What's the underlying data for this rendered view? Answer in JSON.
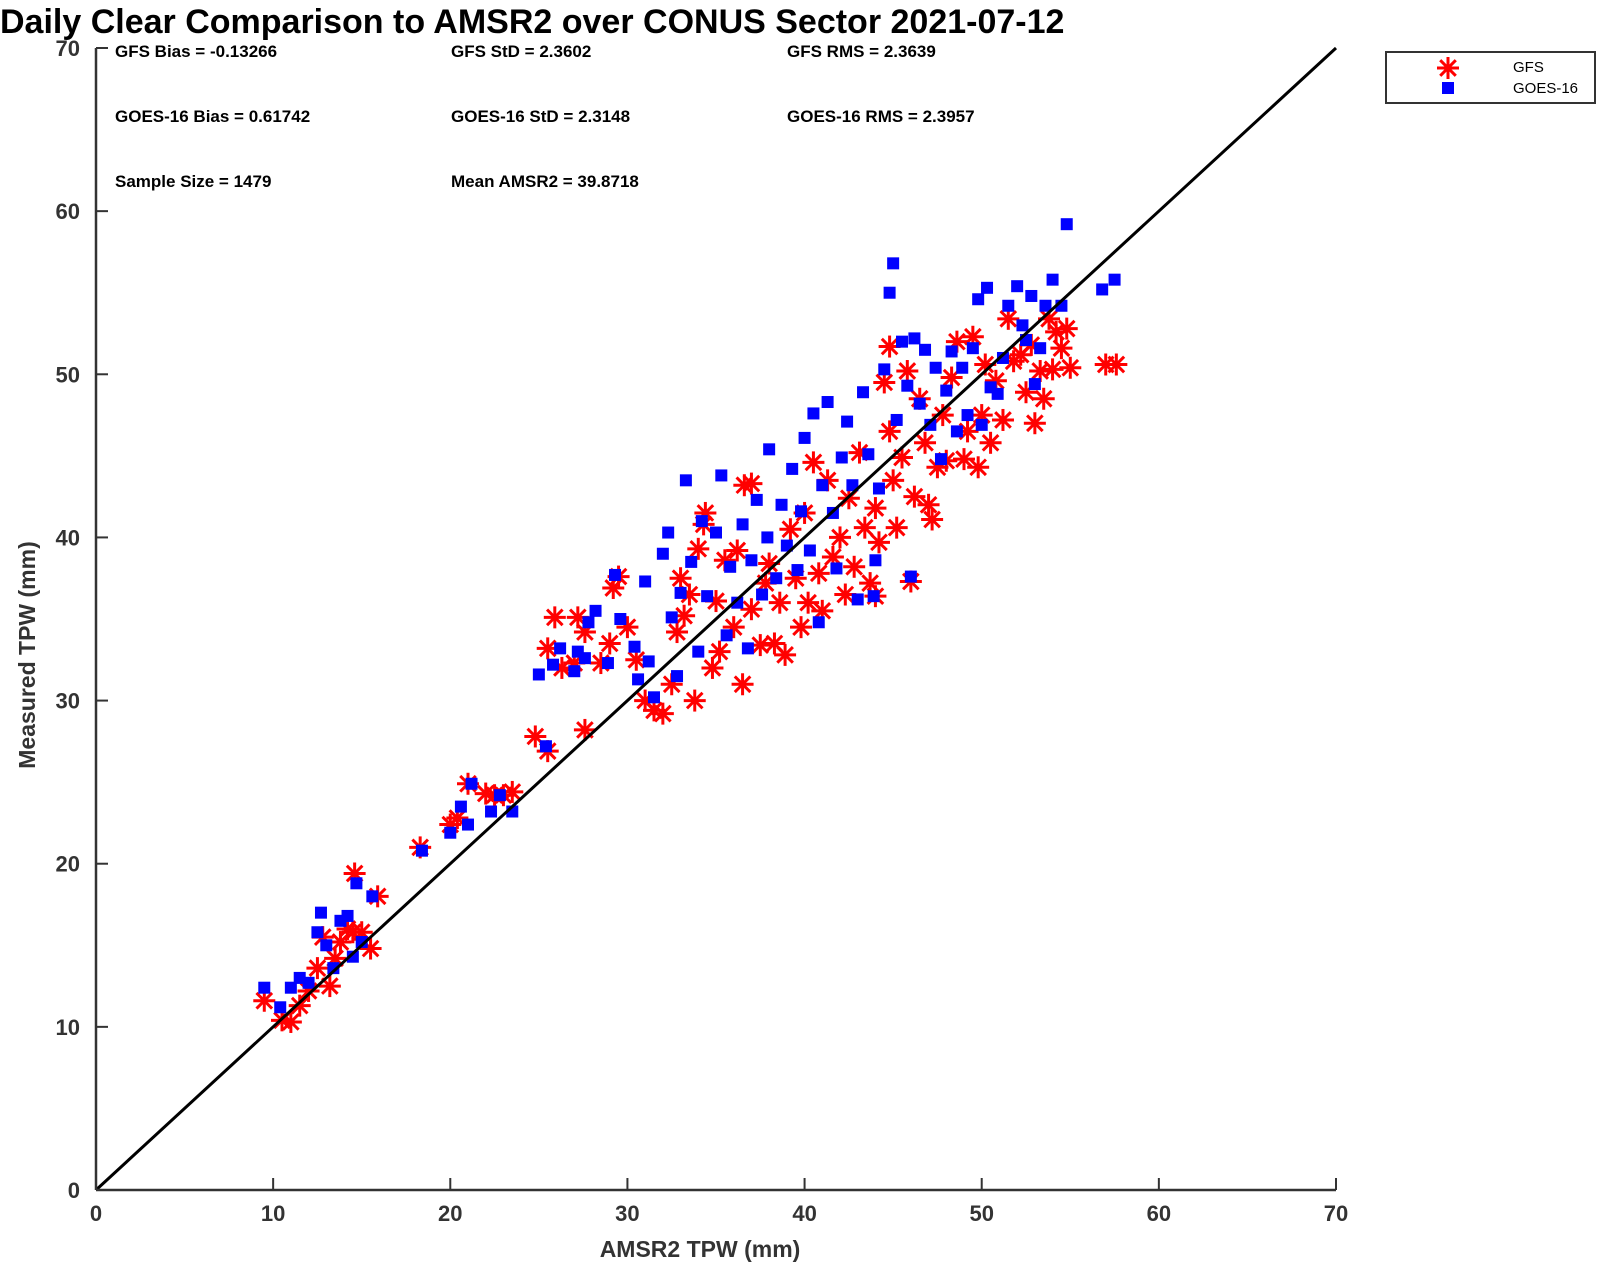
{
  "chart_data": {
    "type": "scatter",
    "title": "Daily Clear Comparison to AMSR2 over CONUS Sector 2021-07-12",
    "xlabel": "AMSR2 TPW (mm)",
    "ylabel": "Measured TPW (mm)",
    "xlim": [
      0,
      70
    ],
    "ylim": [
      0,
      70
    ],
    "xticks": [
      "0",
      "10",
      "20",
      "30",
      "40",
      "50",
      "60",
      "70"
    ],
    "yticks": [
      "0",
      "10",
      "20",
      "30",
      "40",
      "50",
      "60",
      "70"
    ],
    "grid": false,
    "legend_position": "outside-top-right",
    "reference_line": [
      [
        0,
        0
      ],
      [
        70,
        70
      ]
    ],
    "stats": [
      [
        "GFS Bias = -0.13266",
        "GFS StD = 2.3602",
        "GFS RMS = 2.3639"
      ],
      [
        "GOES-16 Bias = 0.61742",
        "GOES-16 StD = 2.3148",
        "GOES-16 RMS = 2.3957"
      ],
      [
        "Sample Size = 1479",
        "Mean AMSR2 = 39.8718",
        ""
      ]
    ],
    "series": [
      {
        "name": "GFS",
        "marker": "asterisk",
        "color": "#ff0000",
        "points": [
          [
            9.5,
            11.6
          ],
          [
            10.5,
            10.4
          ],
          [
            11,
            10.3
          ],
          [
            11.5,
            11.3
          ],
          [
            12,
            12.2
          ],
          [
            12.5,
            13.6
          ],
          [
            12.8,
            15.5
          ],
          [
            13.2,
            12.5
          ],
          [
            13.5,
            14.2
          ],
          [
            13.8,
            15.2
          ],
          [
            14.2,
            16
          ],
          [
            14.5,
            15.8
          ],
          [
            14.6,
            19.4
          ],
          [
            15,
            15.8
          ],
          [
            15.5,
            14.8
          ],
          [
            15.9,
            18
          ],
          [
            18.3,
            21
          ],
          [
            20,
            22.4
          ],
          [
            20.4,
            22.8
          ],
          [
            21,
            24.9
          ],
          [
            22,
            24.3
          ],
          [
            22.5,
            24.2
          ],
          [
            23,
            24.2
          ],
          [
            23.5,
            24.4
          ],
          [
            24.8,
            27.8
          ],
          [
            25.5,
            26.9
          ],
          [
            25.9,
            35.1
          ],
          [
            25.5,
            33.2
          ],
          [
            26.3,
            32
          ],
          [
            27,
            32.3
          ],
          [
            27.2,
            35.1
          ],
          [
            27.6,
            34.2
          ],
          [
            27.6,
            28.2
          ],
          [
            28.5,
            32.3
          ],
          [
            29,
            33.5
          ],
          [
            29.2,
            36.9
          ],
          [
            29.5,
            37.6
          ],
          [
            30,
            34.5
          ],
          [
            30.5,
            32.5
          ],
          [
            31,
            30
          ],
          [
            31.5,
            29.4
          ],
          [
            32,
            29.2
          ],
          [
            32.5,
            31
          ],
          [
            32.8,
            34.2
          ],
          [
            33,
            37.5
          ],
          [
            33.2,
            35.2
          ],
          [
            33.5,
            36.5
          ],
          [
            33.8,
            30
          ],
          [
            34,
            39.3
          ],
          [
            34.3,
            40.8
          ],
          [
            34.4,
            41.5
          ],
          [
            34.8,
            32
          ],
          [
            35,
            36.1
          ],
          [
            35.2,
            33
          ],
          [
            35.5,
            38.6
          ],
          [
            36,
            34.5
          ],
          [
            36.2,
            39.2
          ],
          [
            36.5,
            31
          ],
          [
            36.6,
            43.2
          ],
          [
            37,
            35.6
          ],
          [
            37,
            43.3
          ],
          [
            37.5,
            33.4
          ],
          [
            37.8,
            37.2
          ],
          [
            38,
            38.4
          ],
          [
            38.3,
            33.5
          ],
          [
            38.6,
            36
          ],
          [
            38.9,
            32.8
          ],
          [
            39.2,
            40.5
          ],
          [
            39.5,
            37.5
          ],
          [
            39.8,
            34.5
          ],
          [
            40,
            41.5
          ],
          [
            40.2,
            36
          ],
          [
            40.5,
            44.6
          ],
          [
            40.8,
            37.8
          ],
          [
            41,
            35.5
          ],
          [
            41.3,
            43.5
          ],
          [
            41.6,
            38.8
          ],
          [
            42,
            40
          ],
          [
            42.3,
            36.5
          ],
          [
            42.5,
            42.4
          ],
          [
            42.8,
            38.2
          ],
          [
            43.1,
            45.2
          ],
          [
            43.4,
            40.6
          ],
          [
            43.7,
            37.2
          ],
          [
            44,
            41.8
          ],
          [
            44,
            36.4
          ],
          [
            44.2,
            39.7
          ],
          [
            44.5,
            49.5
          ],
          [
            44.8,
            46.5
          ],
          [
            44.8,
            51.7
          ],
          [
            45,
            43.5
          ],
          [
            45.2,
            40.6
          ],
          [
            45.5,
            44.9
          ],
          [
            45.8,
            50.2
          ],
          [
            46,
            37.3
          ],
          [
            46.2,
            42.5
          ],
          [
            46.5,
            48.5
          ],
          [
            46.8,
            45.8
          ],
          [
            47,
            42
          ],
          [
            47.2,
            41.1
          ],
          [
            47.5,
            44.3
          ],
          [
            47.8,
            47.5
          ],
          [
            48,
            44.7
          ],
          [
            48.3,
            49.8
          ],
          [
            48.6,
            52
          ],
          [
            49,
            44.8
          ],
          [
            49.2,
            46.5
          ],
          [
            49.5,
            52.3
          ],
          [
            49.8,
            44.3
          ],
          [
            50,
            47.5
          ],
          [
            50.2,
            50.6
          ],
          [
            50.5,
            45.8
          ],
          [
            50.8,
            49.6
          ],
          [
            51.2,
            47.2
          ],
          [
            51.5,
            53.4
          ],
          [
            51.8,
            50.8
          ],
          [
            52.2,
            51.2
          ],
          [
            52.5,
            48.9
          ],
          [
            52.8,
            51.8
          ],
          [
            53,
            47
          ],
          [
            53.3,
            50.2
          ],
          [
            53.5,
            48.5
          ],
          [
            53.8,
            53.4
          ],
          [
            54,
            50.3
          ],
          [
            54.2,
            52.6
          ],
          [
            54.5,
            51.6
          ],
          [
            54.8,
            52.8
          ],
          [
            55,
            50.4
          ],
          [
            57,
            50.6
          ],
          [
            57.6,
            50.6
          ]
        ]
      },
      {
        "name": "GOES-16",
        "marker": "square",
        "color": "#0000ff",
        "points": [
          [
            9.5,
            12.4
          ],
          [
            10.4,
            11.2
          ],
          [
            11,
            12.4
          ],
          [
            11.5,
            13
          ],
          [
            12,
            12.7
          ],
          [
            12.5,
            15.8
          ],
          [
            12.7,
            17
          ],
          [
            13,
            15
          ],
          [
            13.4,
            13.6
          ],
          [
            13.8,
            16.5
          ],
          [
            14.2,
            16.8
          ],
          [
            14.5,
            14.3
          ],
          [
            14.7,
            18.8
          ],
          [
            15,
            15.2
          ],
          [
            15.6,
            18
          ],
          [
            18.4,
            20.8
          ],
          [
            20,
            21.9
          ],
          [
            20.6,
            23.5
          ],
          [
            21,
            22.4
          ],
          [
            21.2,
            24.9
          ],
          [
            22.3,
            23.2
          ],
          [
            22.8,
            24.2
          ],
          [
            23.5,
            23.2
          ],
          [
            25,
            31.6
          ],
          [
            25.4,
            27.2
          ],
          [
            25.8,
            32.2
          ],
          [
            26.2,
            33.2
          ],
          [
            27,
            31.8
          ],
          [
            27.2,
            33
          ],
          [
            27.6,
            32.6
          ],
          [
            27.8,
            34.8
          ],
          [
            28.2,
            35.5
          ],
          [
            28.9,
            32.3
          ],
          [
            29.3,
            37.7
          ],
          [
            29.6,
            35
          ],
          [
            30.4,
            33.3
          ],
          [
            30.6,
            31.3
          ],
          [
            31,
            37.3
          ],
          [
            31.2,
            32.4
          ],
          [
            31.5,
            30.2
          ],
          [
            32,
            39
          ],
          [
            32.3,
            40.3
          ],
          [
            32.5,
            35.1
          ],
          [
            32.8,
            31.5
          ],
          [
            33,
            36.6
          ],
          [
            33.3,
            43.5
          ],
          [
            33.6,
            38.5
          ],
          [
            34,
            33
          ],
          [
            34.2,
            41
          ],
          [
            34.5,
            36.4
          ],
          [
            35,
            40.3
          ],
          [
            35.3,
            43.8
          ],
          [
            35.6,
            34
          ],
          [
            35.8,
            38.2
          ],
          [
            36.2,
            36
          ],
          [
            36.5,
            40.8
          ],
          [
            36.8,
            33.2
          ],
          [
            37,
            38.6
          ],
          [
            37.3,
            42.3
          ],
          [
            37.6,
            36.5
          ],
          [
            37.9,
            40
          ],
          [
            38,
            45.4
          ],
          [
            38.4,
            37.5
          ],
          [
            38.7,
            42
          ],
          [
            39,
            39.5
          ],
          [
            39.3,
            44.2
          ],
          [
            39.6,
            38
          ],
          [
            39.8,
            41.6
          ],
          [
            40,
            46.1
          ],
          [
            40.3,
            39.2
          ],
          [
            40.5,
            47.6
          ],
          [
            40.8,
            34.8
          ],
          [
            41,
            43.2
          ],
          [
            41.3,
            48.3
          ],
          [
            41.6,
            41.5
          ],
          [
            41.8,
            38.1
          ],
          [
            42.1,
            44.9
          ],
          [
            42.4,
            47.1
          ],
          [
            42.7,
            43.2
          ],
          [
            43,
            36.2
          ],
          [
            43.3,
            48.9
          ],
          [
            43.6,
            45.1
          ],
          [
            43.9,
            36.4
          ],
          [
            44,
            38.6
          ],
          [
            44.2,
            43
          ],
          [
            44.5,
            50.3
          ],
          [
            44.8,
            55
          ],
          [
            45,
            56.8
          ],
          [
            45.2,
            47.2
          ],
          [
            45.5,
            52
          ],
          [
            45.8,
            49.3
          ],
          [
            46,
            37.6
          ],
          [
            46.2,
            52.2
          ],
          [
            46.5,
            48.2
          ],
          [
            46.8,
            51.5
          ],
          [
            47.1,
            46.9
          ],
          [
            47.4,
            50.4
          ],
          [
            47.7,
            44.8
          ],
          [
            48,
            49
          ],
          [
            48.3,
            51.4
          ],
          [
            48.6,
            46.5
          ],
          [
            48.9,
            50.4
          ],
          [
            49.2,
            47.5
          ],
          [
            49.5,
            51.6
          ],
          [
            49.8,
            54.6
          ],
          [
            50,
            46.9
          ],
          [
            50.3,
            55.3
          ],
          [
            50.5,
            49.2
          ],
          [
            50.9,
            48.8
          ],
          [
            51.2,
            51
          ],
          [
            51.5,
            54.2
          ],
          [
            52,
            55.4
          ],
          [
            52.3,
            53
          ],
          [
            52.5,
            52.1
          ],
          [
            52.8,
            54.8
          ],
          [
            53,
            49.4
          ],
          [
            53.3,
            51.6
          ],
          [
            53.6,
            54.2
          ],
          [
            54,
            55.8
          ],
          [
            54.5,
            54.2
          ],
          [
            54.8,
            59.2
          ],
          [
            56.8,
            55.2
          ],
          [
            57.5,
            55.8
          ]
        ]
      }
    ]
  }
}
